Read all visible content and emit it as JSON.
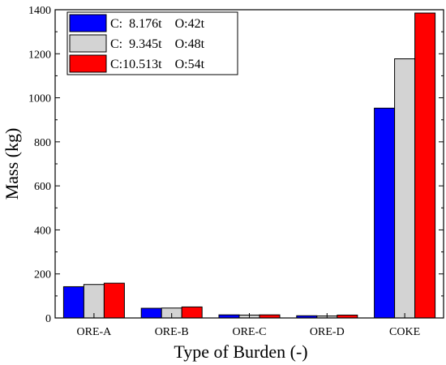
{
  "chart_data": {
    "type": "bar",
    "title": "",
    "xlabel": "Type of Burden (-)",
    "ylabel": "Mass (kg)",
    "categories": [
      "ORE-A",
      "ORE-B",
      "ORE-C",
      "ORE-D",
      "COKE"
    ],
    "ylim": [
      0,
      1400
    ],
    "yticks": [
      0,
      200,
      400,
      600,
      800,
      1000,
      1200,
      1400
    ],
    "grid": false,
    "legend_position": "top-left",
    "series": [
      {
        "name": "C:  8.176t    O:42t",
        "color": "#0000ff",
        "values": [
          142,
          44,
          14,
          10,
          953
        ]
      },
      {
        "name": "C:  9.345t    O:48t",
        "color": "#d3d3d3",
        "values": [
          152,
          45,
          13,
          9,
          1177
        ]
      },
      {
        "name": "C:10.513t    O:54t",
        "color": "#ff0000",
        "values": [
          158,
          50,
          14,
          13,
          1385
        ]
      }
    ]
  }
}
